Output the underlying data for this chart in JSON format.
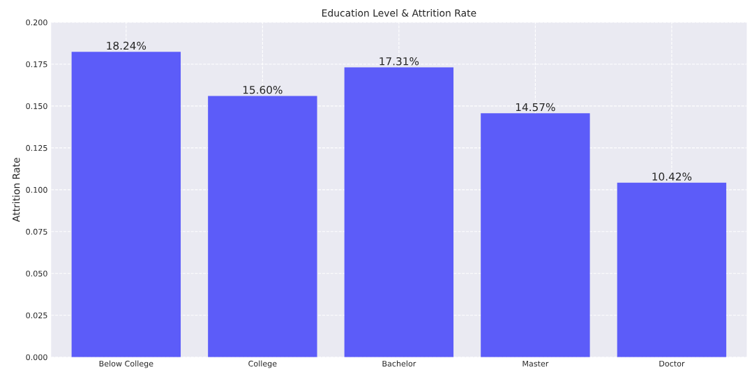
{
  "chart_data": {
    "type": "bar",
    "title": "Education Level & Attrition Rate",
    "ylabel": "Attrition Rate",
    "categories": [
      "Below College",
      "College",
      "Bachelor",
      "Master",
      "Doctor"
    ],
    "values": [
      0.1824,
      0.156,
      0.1731,
      0.1457,
      0.1042
    ],
    "value_labels": [
      "18.24%",
      "15.60%",
      "17.31%",
      "14.57%",
      "10.42%"
    ],
    "color": "#5c5cf9",
    "ylim": [
      0,
      0.2
    ],
    "yticks": [
      {
        "value": 0,
        "label": "0.000"
      },
      {
        "value": 0.025,
        "label": "0.025"
      },
      {
        "value": 0.05,
        "label": "0.050"
      },
      {
        "value": 0.075,
        "label": "0.075"
      },
      {
        "value": 0.1,
        "label": "0.100"
      },
      {
        "value": 0.125,
        "label": "0.125"
      },
      {
        "value": 0.15,
        "label": "0.150"
      },
      {
        "value": 0.175,
        "label": "0.175"
      },
      {
        "value": 0.2,
        "label": "0.200"
      }
    ],
    "grid": true
  }
}
